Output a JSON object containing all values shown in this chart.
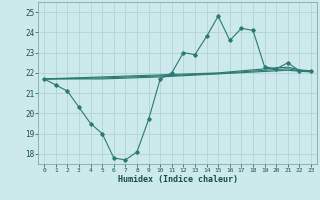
{
  "xlabel": "Humidex (Indice chaleur)",
  "bg_color": "#cce9ec",
  "grid_color": "#b0cfcf",
  "line_color": "#2a7a72",
  "xlim": [
    -0.5,
    23.5
  ],
  "ylim": [
    17.5,
    25.5
  ],
  "yticks": [
    18,
    19,
    20,
    21,
    22,
    23,
    24,
    25
  ],
  "xticks": [
    0,
    1,
    2,
    3,
    4,
    5,
    6,
    7,
    8,
    9,
    10,
    11,
    12,
    13,
    14,
    15,
    16,
    17,
    18,
    19,
    20,
    21,
    22,
    23
  ],
  "main_series": [
    21.7,
    21.4,
    21.1,
    20.3,
    19.5,
    19.0,
    17.8,
    17.7,
    18.1,
    19.7,
    21.7,
    22.0,
    23.0,
    22.9,
    23.8,
    24.8,
    23.6,
    24.2,
    24.1,
    22.3,
    22.2,
    22.5,
    22.1,
    22.1
  ],
  "line1": [
    21.7,
    21.72,
    21.74,
    21.76,
    21.78,
    21.8,
    21.82,
    21.84,
    21.86,
    21.88,
    21.9,
    21.92,
    21.94,
    21.96,
    21.98,
    22.0,
    22.05,
    22.1,
    22.15,
    22.2,
    22.25,
    22.28,
    22.15,
    22.1
  ],
  "line2": [
    21.7,
    21.7,
    21.7,
    21.7,
    21.7,
    21.7,
    21.72,
    21.74,
    21.76,
    21.78,
    21.8,
    21.83,
    21.86,
    21.89,
    21.92,
    21.95,
    21.98,
    22.01,
    22.04,
    22.07,
    22.1,
    22.13,
    22.08,
    22.05
  ],
  "line3": [
    21.7,
    21.71,
    21.72,
    21.73,
    21.74,
    21.75,
    21.77,
    21.79,
    21.81,
    21.83,
    21.85,
    21.87,
    21.9,
    21.93,
    21.95,
    21.97,
    22.01,
    22.05,
    22.09,
    22.13,
    22.17,
    22.2,
    22.11,
    22.07
  ]
}
